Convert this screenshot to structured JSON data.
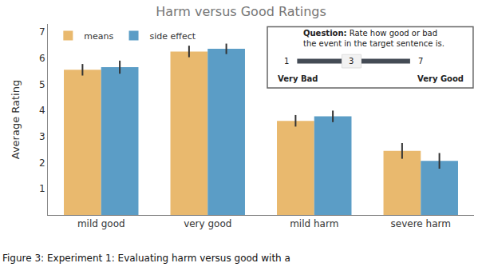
{
  "chart_data": {
    "type": "bar",
    "title": "Harm versus Good Ratings",
    "y_label": "Average Rating",
    "categories": [
      "mild good",
      "very good",
      "mild harm",
      "severe harm"
    ],
    "series": [
      {
        "name": "means",
        "color": "#e9b96e",
        "values": [
          5.55,
          6.25,
          3.6,
          2.45
        ],
        "errors": [
          0.22,
          0.22,
          0.22,
          0.3
        ]
      },
      {
        "name": "side effect",
        "color": "#5b9dc6",
        "values": [
          5.65,
          6.35,
          3.77,
          2.07
        ],
        "errors": [
          0.25,
          0.2,
          0.22,
          0.3
        ]
      }
    ],
    "ylim": [
      0,
      7.3
    ],
    "yticks": [
      1,
      2,
      3,
      4,
      5,
      6,
      7
    ],
    "grid": false,
    "legend": "top-left",
    "inset": {
      "question_label": "Question:",
      "question_lines": [
        "Rate how good or bad",
        "the event in the target sentence is."
      ],
      "scale_min": "1",
      "scale_value": "3",
      "scale_max": "7",
      "label_min": "Very Bad",
      "label_max": "Very Good"
    },
    "caption": "Figure 3: Experiment 1: Evaluating harm versus good with a"
  }
}
